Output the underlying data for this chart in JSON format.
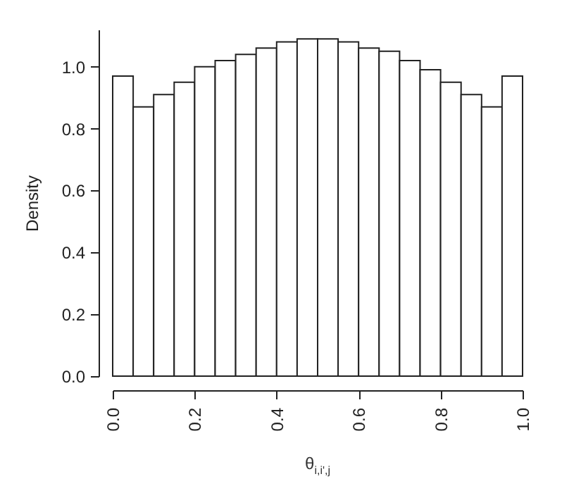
{
  "chart_data": {
    "type": "histogram",
    "xlabel": "θ$_{i,i',j}$",
    "ylabel": "Density",
    "bins": [
      0,
      0.05,
      0.1,
      0.15,
      0.2,
      0.25,
      0.3,
      0.35,
      0.4,
      0.45,
      0.5,
      0.55,
      0.6,
      0.65,
      0.7,
      0.75,
      0.8,
      0.85,
      0.9,
      0.95,
      1.0
    ],
    "values": [
      0.97,
      0.87,
      0.91,
      0.95,
      1.0,
      1.02,
      1.04,
      1.06,
      1.08,
      1.09,
      1.09,
      1.08,
      1.06,
      1.05,
      1.02,
      0.99,
      0.95,
      0.91,
      0.87,
      0.97
    ],
    "color": "#ffffff",
    "xlim": [
      0,
      1
    ],
    "xticks": [
      {
        "value": 0,
        "label": "0.0"
      },
      0.2,
      0.4,
      0.6,
      0.8,
      {
        "value": 1,
        "label": "1.0"
      }
    ],
    "ylim": [
      0,
      1.12
    ],
    "yticks": [
      {
        "value": 0,
        "label": "0.0"
      },
      0.2,
      0.4,
      0.6,
      0.8,
      {
        "value": 1,
        "label": "1.0"
      }
    ],
    "grid": false
  }
}
